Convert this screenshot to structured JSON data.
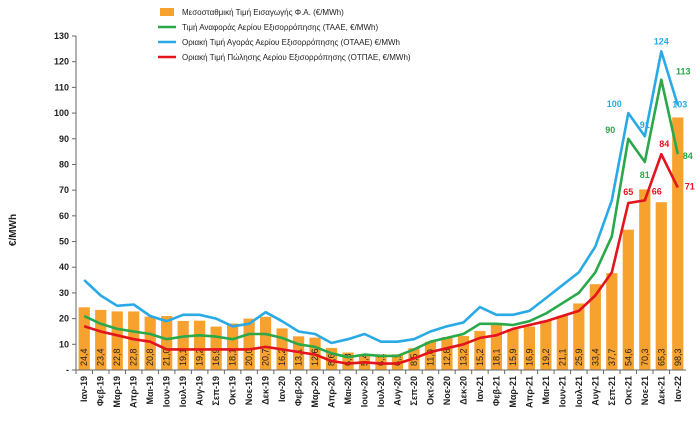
{
  "colors": {
    "bar": "#F7A12E",
    "taae": "#2AA84A",
    "otaae": "#29AAE6",
    "otpae": "#E3141B",
    "axis": "#666666",
    "text": "#222222"
  },
  "chart_data": {
    "type": "bar",
    "ylabel": "€/MWh",
    "ylim": [
      0,
      130
    ],
    "yticks": [
      0,
      10,
      20,
      30,
      40,
      50,
      60,
      70,
      80,
      90,
      100,
      110,
      120,
      130
    ],
    "ytick_labels": [
      "-",
      "10",
      "20",
      "30",
      "40",
      "50",
      "60",
      "70",
      "80",
      "90",
      "100",
      "110",
      "120",
      "130"
    ],
    "grid": false,
    "legend_position": "top-left",
    "categories": [
      "Ιαν-19",
      "Φεβ-19",
      "Μαρ-19",
      "Απρ-19",
      "Μαϊ-19",
      "Ιουν-19",
      "Ιουλ-19",
      "Αυγ-19",
      "Σεπ-19",
      "Οκτ-19",
      "Νοε-19",
      "Δεκ-19",
      "Ιαν-20",
      "Φεβ-20",
      "Μαρ-20",
      "Απρ-20",
      "Μαϊ-20",
      "Ιουν-20",
      "Ιουλ-20",
      "Αυγ-20",
      "Σεπ-20",
      "Οκτ-20",
      "Νοε-20",
      "Δεκ-20",
      "Ιαν-21",
      "Φεβ-21",
      "Μαρ-21",
      "Απρ-21",
      "Μαϊ-21",
      "Ιουν-21",
      "Ιουλ-21",
      "Αυγ-21",
      "Σεπ-21",
      "Οκτ-21",
      "Νοε-21",
      "Δεκ-21",
      "Ιαν-22"
    ],
    "xtick_labels": [
      "Ιαν-19",
      "Φεβ-19",
      "Μαρ-19",
      "Απρ-19",
      "Μαι-19",
      "Ιουν-19",
      "Ιουλ-19",
      "Αυγ-19",
      "Σεπ-19",
      "Οκτ-19",
      "Νοε-19",
      "Δεκ-19",
      "Ιαν-20",
      "Φεβ-20",
      "Μαρ-20",
      "Απρ-20",
      "Μαι-20",
      "Ιουν-20",
      "Ιουλ-20",
      "Αυγ-20",
      "Σεπ-20",
      "Οκτ-20",
      "Νοε-20",
      "Δεκ-20",
      "Ιαν-21",
      "Φεβ-21",
      "Μαρ-21",
      "Απρ-21",
      "Μαι-21",
      "Ιουν-21",
      "Ιουλ-21",
      "Αυγ-21",
      "Σεπ-21",
      "Οκτ-21",
      "Νοε-21",
      "Δεκ-21",
      "Ιαν-22"
    ],
    "series": [
      {
        "name": "Μεσοσταθμική Τιμή Εισαγωγής Φ.Α. (€/MWh)",
        "kind": "bar",
        "color_key": "bar",
        "values": [
          24.4,
          23.4,
          22.8,
          22.8,
          20.8,
          21.0,
          19.1,
          19.2,
          16.9,
          18.1,
          20.0,
          20.7,
          16.2,
          13.1,
          12.6,
          8.6,
          6.8,
          5.4,
          6.1,
          6.1,
          8.5,
          11.0,
          12.8,
          13.2,
          15.2,
          18.1,
          15.9,
          16.9,
          19.2,
          21.1,
          25.9,
          33.4,
          37.7,
          54.6,
          70.3,
          65.3,
          98.3
        ],
        "labels": [
          "24,4",
          "23,4",
          "22,8",
          "22,8",
          "20,8",
          "21,0",
          "19,1",
          "19,2",
          "16,9",
          "18,1",
          "20,0",
          "20,7",
          "16,2",
          "13,1",
          "12,6",
          "8,6",
          "6,8",
          "5,4",
          "6,1",
          "6,1",
          "8,5",
          "11,0",
          "12,8",
          "13,2",
          "15,2",
          "18,1",
          "15,9",
          "16,9",
          "19,2",
          "21,1",
          "25,9",
          "33,4",
          "37,7",
          "54,6",
          "70,3",
          "65,3",
          "98,3"
        ]
      },
      {
        "name": "Τιμή Αναφοράς Αερίου Εξισορρόπησης (ΤΑΑΕ, €/MWh)",
        "kind": "line",
        "color_key": "taae",
        "values": [
          21,
          18,
          16,
          15,
          14,
          12,
          13,
          13.5,
          13,
          12,
          14,
          14,
          12.5,
          10,
          9,
          6.5,
          5,
          6,
          5.5,
          5.5,
          8,
          11,
          12.5,
          14,
          18,
          18,
          17.5,
          19,
          22,
          26,
          30,
          38,
          52,
          90,
          81,
          113,
          84
        ]
      },
      {
        "name": "Οριακή Τιμή Αγοράς Αερίου Εξισορρόπησης  (ΟΤΑΑΕ) €/MWh",
        "kind": "line",
        "color_key": "otaae",
        "values": [
          35,
          29,
          25,
          25.5,
          21,
          19,
          21.5,
          21.5,
          20,
          17,
          18,
          22.5,
          19,
          15,
          14,
          10.5,
          12,
          14,
          11,
          11,
          12,
          15,
          17,
          18.5,
          24.5,
          21.5,
          21.5,
          23,
          28,
          33,
          38,
          48,
          66,
          100,
          91,
          124,
          103
        ]
      },
      {
        "name": "Οριακή Τιμή Πώλησης Αερίου Εξισορρόπησης (ΟΤΠΑΕ, €/MWh)",
        "kind": "line",
        "color_key": "otpae",
        "values": [
          17,
          15,
          13.5,
          12,
          11,
          8,
          8,
          8,
          8,
          8,
          8,
          9,
          8,
          7,
          6,
          3.5,
          2.5,
          3,
          2.5,
          2.5,
          4.5,
          7,
          8.5,
          10,
          12.5,
          13.5,
          16,
          17.5,
          19,
          21,
          23,
          29,
          38,
          65,
          66,
          84,
          71
        ]
      }
    ],
    "annotations": [
      {
        "series": 1,
        "index": 33,
        "text": "90",
        "dx": -18,
        "dy": -6
      },
      {
        "series": 1,
        "index": 34,
        "text": "81",
        "dx": 0,
        "dy": 16
      },
      {
        "series": 1,
        "index": 35,
        "text": "113",
        "dx": 22,
        "dy": -5
      },
      {
        "series": 1,
        "index": 36,
        "text": "84",
        "dx": 10,
        "dy": 5
      },
      {
        "series": 2,
        "index": 33,
        "text": "100",
        "dx": -14,
        "dy": -6
      },
      {
        "series": 2,
        "index": 34,
        "text": "91",
        "dx": 0,
        "dy": -8
      },
      {
        "series": 2,
        "index": 35,
        "text": "124",
        "dx": 0,
        "dy": -7
      },
      {
        "series": 2,
        "index": 36,
        "text": "103",
        "dx": 2,
        "dy": 2
      },
      {
        "series": 3,
        "index": 33,
        "text": "65",
        "dx": 0,
        "dy": -8
      },
      {
        "series": 3,
        "index": 34,
        "text": "66",
        "dx": 12,
        "dy": -6
      },
      {
        "series": 3,
        "index": 35,
        "text": "84",
        "dx": 3,
        "dy": -7
      },
      {
        "series": 3,
        "index": 36,
        "text": "71",
        "dx": 12,
        "dy": 2
      }
    ]
  }
}
